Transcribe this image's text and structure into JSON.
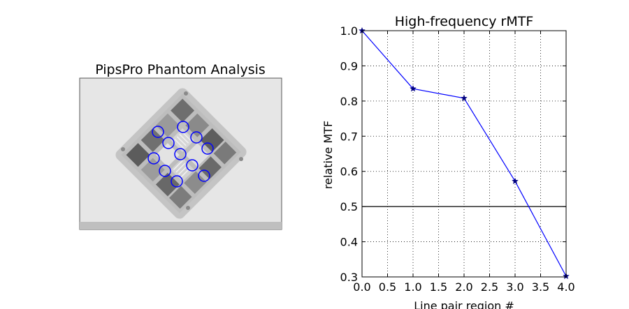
{
  "left_panel": {
    "title": "PipsPro Phantom Analysis"
  },
  "chart_data": {
    "type": "line",
    "title": "High-frequency rMTF",
    "xlabel": "Line pair region #",
    "ylabel": "relative MTF",
    "x": [
      0,
      1,
      2,
      3,
      4
    ],
    "series": [
      {
        "values": [
          1.0,
          0.835,
          0.808,
          0.572,
          0.302
        ],
        "color": "#0000ff",
        "marker": "star"
      }
    ],
    "xlim": [
      0.0,
      4.0
    ],
    "ylim": [
      0.3,
      1.0
    ],
    "xticks": [
      "0.0",
      "0.5",
      "1.0",
      "1.5",
      "2.0",
      "2.5",
      "3.0",
      "3.5",
      "4.0"
    ],
    "yticks": [
      "0.3",
      "0.4",
      "0.5",
      "0.6",
      "0.7",
      "0.8",
      "0.9",
      "1.0"
    ],
    "grid": true,
    "threshold_line": {
      "y": 0.5,
      "color": "#000000"
    }
  }
}
